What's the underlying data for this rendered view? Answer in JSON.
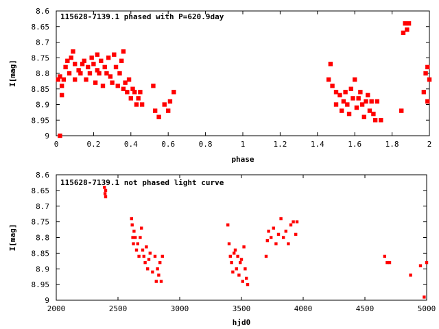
{
  "chart_data": [
    {
      "type": "scatter",
      "title": "115628-7139.1 phased with P=620.9day",
      "xlabel": "phase",
      "ylabel": "I[mag]",
      "xlim": [
        0,
        2
      ],
      "ylim": [
        9,
        8.6
      ],
      "y_inverted": true,
      "grid": false,
      "xticks": [
        "0",
        "0.2",
        "0.4",
        "0.6",
        "0.8",
        "1",
        "1.2",
        "1.4",
        "1.6",
        "1.8",
        "2"
      ],
      "yticks": [
        "8.6",
        "8.65",
        "8.7",
        "8.75",
        "8.8",
        "8.85",
        "8.9",
        "8.95",
        "9"
      ],
      "marker_color": "#ff0000",
      "series": [
        {
          "x": [
            0.01,
            0.02,
            0.02,
            0.03,
            0.03,
            0.04,
            0.05,
            0.06,
            0.07,
            0.08,
            0.09,
            0.1,
            0.1,
            0.12,
            0.13,
            0.14,
            0.15,
            0.16,
            0.17,
            0.18,
            0.19,
            0.2,
            0.21,
            0.22,
            0.22,
            0.23,
            0.24,
            0.25,
            0.26,
            0.27,
            0.28,
            0.29,
            0.3,
            0.31,
            0.32,
            0.33,
            0.34,
            0.35,
            0.36,
            0.36,
            0.37,
            0.38,
            0.39,
            0.4,
            0.41,
            0.42,
            0.43,
            0.44,
            0.45,
            0.46,
            0.52,
            0.53,
            0.55,
            0.58,
            0.6,
            0.61,
            0.63,
            1.46,
            1.47,
            1.48,
            1.5,
            1.5,
            1.52,
            1.53,
            1.54,
            1.55,
            1.56,
            1.57,
            1.58,
            1.59,
            1.6,
            1.61,
            1.62,
            1.63,
            1.64,
            1.65,
            1.66,
            1.67,
            1.68,
            1.69,
            1.7,
            1.71,
            1.72,
            1.74,
            1.85,
            1.86,
            1.87,
            1.88,
            1.89,
            1.97,
            1.98,
            1.99,
            1.99,
            2.0
          ],
          "y": [
            8.82,
            8.81,
            9.0,
            8.84,
            8.87,
            8.82,
            8.78,
            8.76,
            8.8,
            8.75,
            8.73,
            8.77,
            8.82,
            8.79,
            8.8,
            8.77,
            8.76,
            8.82,
            8.78,
            8.8,
            8.75,
            8.77,
            8.83,
            8.74,
            8.79,
            8.8,
            8.76,
            8.84,
            8.78,
            8.8,
            8.75,
            8.81,
            8.83,
            8.74,
            8.78,
            8.84,
            8.8,
            8.76,
            8.73,
            8.85,
            8.83,
            8.86,
            8.82,
            8.88,
            8.85,
            8.86,
            8.9,
            8.88,
            8.86,
            8.9,
            8.84,
            8.92,
            8.94,
            8.9,
            8.92,
            8.89,
            8.86,
            8.82,
            8.77,
            8.84,
            8.86,
            8.9,
            8.87,
            8.92,
            8.89,
            8.86,
            8.9,
            8.93,
            8.85,
            8.88,
            8.82,
            8.91,
            8.88,
            8.86,
            8.9,
            8.94,
            8.89,
            8.87,
            8.92,
            8.89,
            8.93,
            8.95,
            8.89,
            8.95,
            8.92,
            8.67,
            8.64,
            8.66,
            8.64,
            8.86,
            8.8,
            8.78,
            8.89,
            8.82
          ]
        }
      ]
    },
    {
      "type": "scatter",
      "title": "115628-7139.1 not phased light curve",
      "xlabel": "hjd0",
      "ylabel": "I[mag]",
      "xlim": [
        2000,
        5000
      ],
      "ylim": [
        9,
        8.6
      ],
      "y_inverted": true,
      "grid": false,
      "xticks": [
        "2000",
        "2500",
        "3000",
        "3500",
        "4000",
        "4500",
        "5000"
      ],
      "yticks": [
        "8.6",
        "8.65",
        "8.7",
        "8.75",
        "8.8",
        "8.85",
        "8.9",
        "8.95",
        "9"
      ],
      "marker_color": "#ff0000",
      "series": [
        {
          "x": [
            2390,
            2395,
            2400,
            2400,
            2610,
            2615,
            2620,
            2625,
            2630,
            2640,
            2650,
            2660,
            2670,
            2680,
            2690,
            2700,
            2710,
            2720,
            2730,
            2740,
            2750,
            2760,
            2780,
            2800,
            2810,
            2820,
            2830,
            2840,
            2850,
            2860,
            3390,
            3400,
            3410,
            3420,
            3430,
            3440,
            3450,
            3460,
            3470,
            3480,
            3490,
            3500,
            3510,
            3520,
            3530,
            3540,
            3550,
            3700,
            3710,
            3720,
            3740,
            3760,
            3780,
            3800,
            3820,
            3840,
            3860,
            3880,
            3900,
            3920,
            3940,
            3950,
            4660,
            4680,
            4700,
            4870,
            4950,
            4980,
            5000
          ],
          "y": [
            8.64,
            8.66,
            8.67,
            8.65,
            8.74,
            8.76,
            8.8,
            8.82,
            8.78,
            8.8,
            8.84,
            8.82,
            8.86,
            8.8,
            8.77,
            8.84,
            8.86,
            8.88,
            8.83,
            8.9,
            8.87,
            8.85,
            8.91,
            8.86,
            8.94,
            8.9,
            8.92,
            8.88,
            8.94,
            8.86,
            8.76,
            8.82,
            8.86,
            8.88,
            8.91,
            8.85,
            8.84,
            8.9,
            8.86,
            8.92,
            8.88,
            8.87,
            8.94,
            8.83,
            8.9,
            8.93,
            8.95,
            8.86,
            8.81,
            8.78,
            8.8,
            8.77,
            8.82,
            8.79,
            8.74,
            8.8,
            8.78,
            8.82,
            8.76,
            8.75,
            8.79,
            8.75,
            8.86,
            8.88,
            8.88,
            8.92,
            8.89,
            8.99,
            8.88
          ]
        }
      ]
    }
  ]
}
